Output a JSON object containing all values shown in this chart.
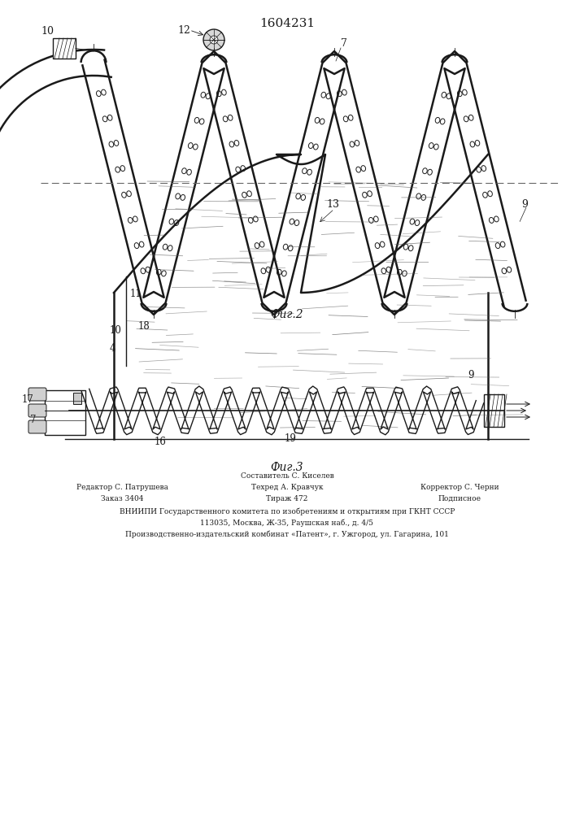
{
  "title": "1604231",
  "fig2_label": "Фиг.2",
  "fig3_label": "Фиг.3",
  "footer_col1": [
    "Редактор С. Патрушева",
    "Заказ 3404"
  ],
  "footer_col2": [
    "Составитель С. Киселев",
    "Тираж 472"
  ],
  "footer_col2b": [
    "Техред А. Кравчук",
    ""
  ],
  "footer_col3": [
    "Корректор С. Черни",
    "Подписное"
  ],
  "footer_line3": "ВНИИПИ Государственного комитета по изобретениям и открытиям при ГКНТ СССР",
  "footer_line4": "113035, Москва, Ж-35, Раушская наб., д. 4/5",
  "footer_line5": "Производственно-издательский комбинат «Патент», г. Ужгород, ул. Гагарина, 101",
  "bg_color": "#ffffff",
  "line_color": "#1a1a1a"
}
